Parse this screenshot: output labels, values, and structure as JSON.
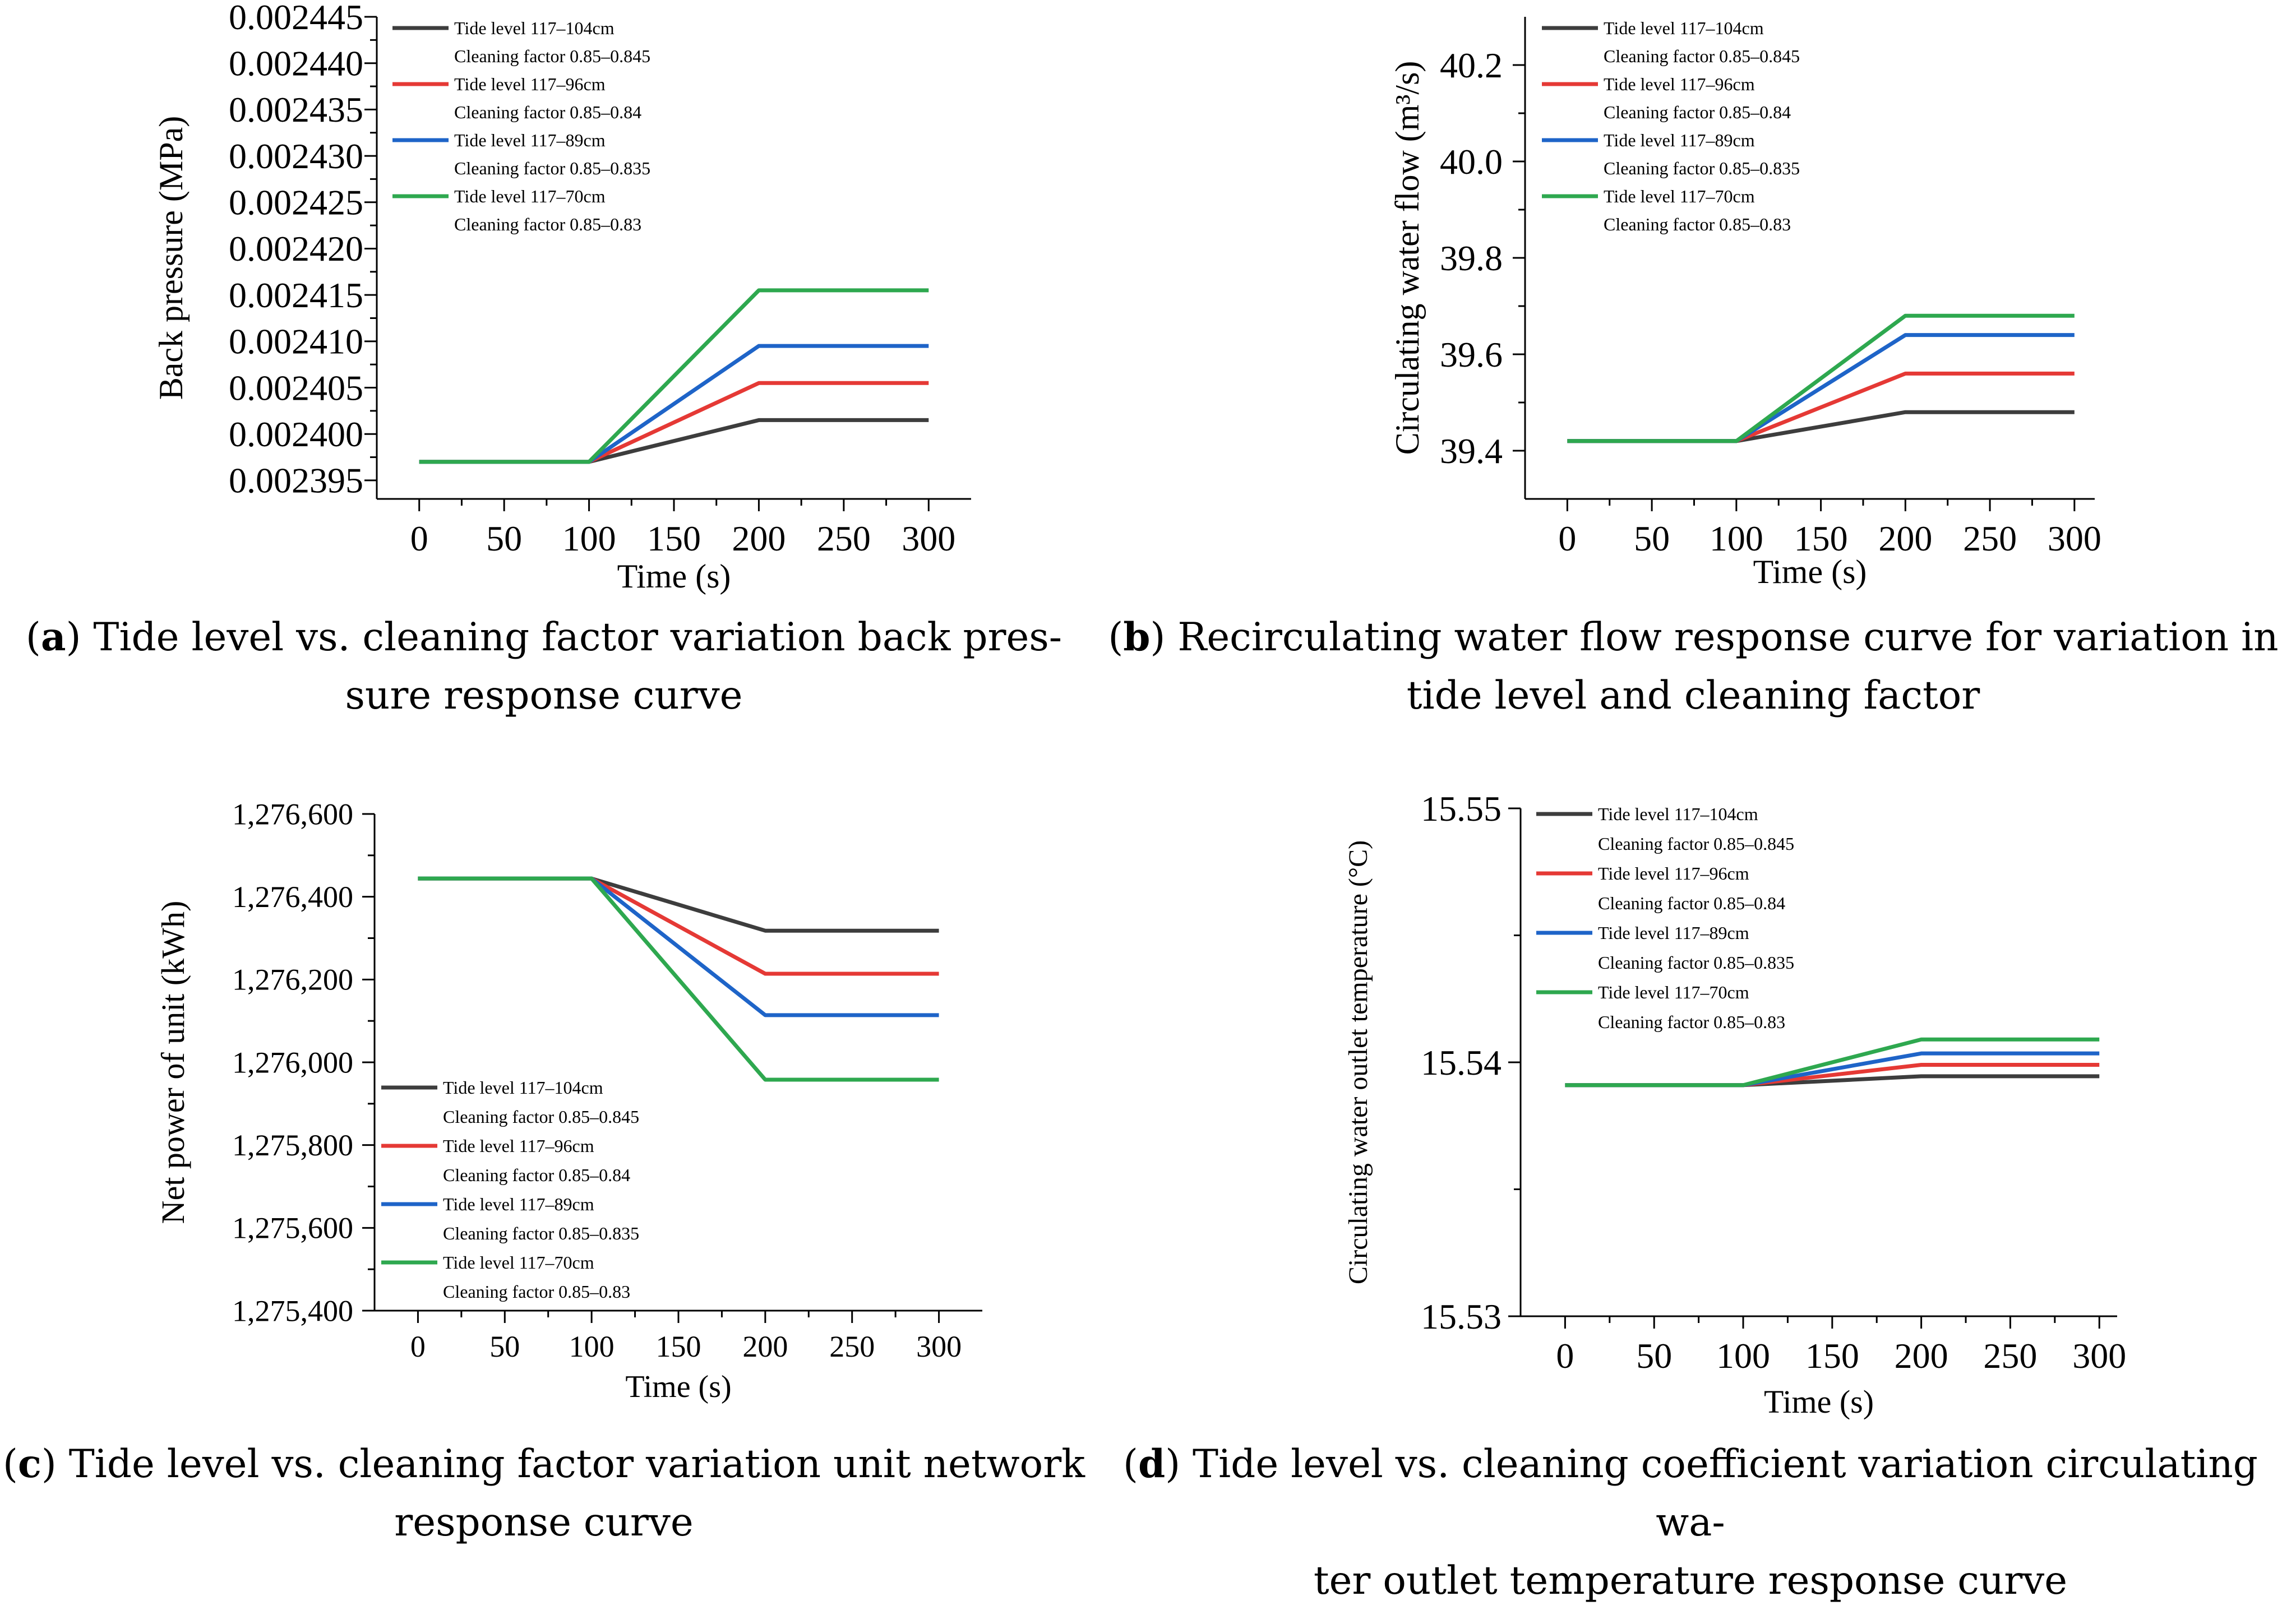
{
  "chart_data": [
    {
      "id": "a",
      "type": "line",
      "xlabel": "Time (s)",
      "ylabel": "Back pressure (MPa)",
      "xlim": [
        -25,
        325
      ],
      "ylim": [
        0.002393,
        0.002445
      ],
      "xticks": [
        0,
        50,
        100,
        150,
        200,
        250,
        300
      ],
      "xtick_labels": [
        "0",
        "50",
        "100",
        "150",
        "200",
        "250",
        "300"
      ],
      "yticks": [
        0.002395,
        0.0024,
        0.002405,
        0.00241,
        0.002415,
        0.00242,
        0.002425,
        0.00243,
        0.002435,
        0.00244,
        0.002445
      ],
      "ytick_labels": [
        "0.002395",
        "0.002400",
        "0.002405",
        "0.002410",
        "0.002415",
        "0.002420",
        "0.002425",
        "0.002430",
        "0.002435",
        "0.002440",
        "0.002445"
      ],
      "legend_position": "top-left",
      "x": [
        0,
        100,
        200,
        300
      ],
      "series": [
        {
          "name": "Tide level 117–104cm",
          "name2": "Cleaning factor 0.85–0.845",
          "color": "#3d3d3d",
          "values": [
            0.002397,
            0.002397,
            0.0024015,
            0.0024015
          ]
        },
        {
          "name": "Tide level 117–96cm",
          "name2": "Cleaning factor 0.85–0.84",
          "color": "#e53935",
          "values": [
            0.002397,
            0.002397,
            0.0024055,
            0.0024055
          ]
        },
        {
          "name": "Tide level 117–89cm",
          "name2": "Cleaning factor 0.85–0.835",
          "color": "#1e64c8",
          "values": [
            0.002397,
            0.002397,
            0.0024095,
            0.0024095
          ]
        },
        {
          "name": "Tide level 117–70cm",
          "name2": "Cleaning factor 0.85–0.83",
          "color": "#2ea84f",
          "values": [
            0.002397,
            0.002397,
            0.0024155,
            0.0024155
          ]
        }
      ]
    },
    {
      "id": "b",
      "type": "line",
      "xlabel": "Time (s)",
      "ylabel": "Circulating water flow (m³/s)",
      "xlim": [
        -25,
        312
      ],
      "ylim": [
        39.3,
        40.3
      ],
      "xticks": [
        0,
        50,
        100,
        150,
        200,
        250,
        300
      ],
      "xtick_labels": [
        "0",
        "50",
        "100",
        "150",
        "200",
        "250",
        "300"
      ],
      "yticks": [
        39.4,
        39.6,
        39.8,
        40.0,
        40.2
      ],
      "ytick_labels": [
        "39.4",
        "39.6",
        "39.8",
        "40.0",
        "40.2"
      ],
      "legend_position": "top-left",
      "x": [
        0,
        100,
        200,
        300
      ],
      "series": [
        {
          "name": "Tide level 117–104cm",
          "name2": "Cleaning factor 0.85–0.845",
          "color": "#3d3d3d",
          "values": [
            39.42,
            39.42,
            39.48,
            39.48
          ]
        },
        {
          "name": "Tide level 117–96cm",
          "name2": "Cleaning factor 0.85–0.84",
          "color": "#e53935",
          "values": [
            39.42,
            39.42,
            39.56,
            39.56
          ]
        },
        {
          "name": "Tide level 117–89cm",
          "name2": "Cleaning factor 0.85–0.835",
          "color": "#1e64c8",
          "values": [
            39.42,
            39.42,
            39.64,
            39.64
          ]
        },
        {
          "name": "Tide level 117–70cm",
          "name2": "Cleaning factor 0.85–0.83",
          "color": "#2ea84f",
          "values": [
            39.42,
            39.42,
            39.68,
            39.68
          ]
        }
      ]
    },
    {
      "id": "c",
      "type": "line",
      "xlabel": "Time (s)",
      "ylabel": "Net power of unit (kWh)",
      "xlim": [
        -25,
        325
      ],
      "ylim": [
        1275400,
        1276600
      ],
      "xticks": [
        0,
        50,
        100,
        150,
        200,
        250,
        300
      ],
      "xtick_labels": [
        "0",
        "50",
        "100",
        "150",
        "200",
        "250",
        "300"
      ],
      "yticks": [
        1275400,
        1275600,
        1275800,
        1276000,
        1276200,
        1276400,
        1276600
      ],
      "ytick_labels": [
        "1,275,400",
        "1,275,600",
        "1,275,800",
        "1,276,000",
        "1,276,200",
        "1,276,400",
        "1,276,600"
      ],
      "legend_position": "bottom-left",
      "x": [
        0,
        100,
        200,
        300
      ],
      "series": [
        {
          "name": "Tide level 117–104cm",
          "name2": "Cleaning factor 0.85–0.845",
          "color": "#3d3d3d",
          "values": [
            1276444,
            1276444,
            1276318,
            1276318
          ]
        },
        {
          "name": "Tide level 117–96cm",
          "name2": "Cleaning factor 0.85–0.84",
          "color": "#e53935",
          "values": [
            1276444,
            1276444,
            1276214,
            1276214
          ]
        },
        {
          "name": "Tide level 117–89cm",
          "name2": "Cleaning factor 0.85–0.835",
          "color": "#1e64c8",
          "values": [
            1276444,
            1276444,
            1276114,
            1276114
          ]
        },
        {
          "name": "Tide level 117–70cm",
          "name2": "Cleaning factor 0.85–0.83",
          "color": "#2ea84f",
          "values": [
            1276444,
            1276444,
            1275958,
            1275958
          ]
        }
      ]
    },
    {
      "id": "d",
      "type": "line",
      "xlabel": "Time (s)",
      "ylabel": "Circulating water outlet temperature (°C)",
      "xlim": [
        -25,
        310
      ],
      "ylim": [
        15.53,
        15.55
      ],
      "xticks": [
        0,
        50,
        100,
        150,
        200,
        250,
        300
      ],
      "xtick_labels": [
        "0",
        "50",
        "100",
        "150",
        "200",
        "250",
        "300"
      ],
      "yticks": [
        15.53,
        15.54,
        15.55
      ],
      "ytick_labels": [
        "15.53",
        "15.54",
        "15.55"
      ],
      "legend_position": "top-left",
      "x": [
        0,
        100,
        200,
        300
      ],
      "series": [
        {
          "name": "Tide level 117–104cm",
          "name2": "Cleaning factor 0.85–0.845",
          "color": "#3d3d3d",
          "values": [
            15.5391,
            15.5391,
            15.53945,
            15.53945
          ]
        },
        {
          "name": "Tide level 117–96cm",
          "name2": "Cleaning factor 0.85–0.84",
          "color": "#e53935",
          "values": [
            15.5391,
            15.5391,
            15.5399,
            15.5399
          ]
        },
        {
          "name": "Tide level 117–89cm",
          "name2": "Cleaning factor 0.85–0.835",
          "color": "#1e64c8",
          "values": [
            15.5391,
            15.5391,
            15.54035,
            15.54035
          ]
        },
        {
          "name": "Tide level 117–70cm",
          "name2": "Cleaning factor 0.85–0.83",
          "color": "#2ea84f",
          "values": [
            15.5391,
            15.5391,
            15.5409,
            15.5409
          ]
        }
      ]
    }
  ],
  "captions": {
    "a": {
      "letter": "a",
      "text": ") Tide level vs. cleaning factor variation back pres-",
      "line2": "sure response curve"
    },
    "b": {
      "letter": "b",
      "text": ") Recirculating water flow response curve for variation in",
      "line2": "tide level and cleaning factor"
    },
    "c": {
      "letter": "c",
      "text": ") Tide level vs. cleaning factor variation unit network",
      "line2": "response curve"
    },
    "d": {
      "letter": "d",
      "text": ") Tide level vs. cleaning coefficient variation circulating wa-",
      "line2": "ter outlet temperature response curve"
    }
  }
}
